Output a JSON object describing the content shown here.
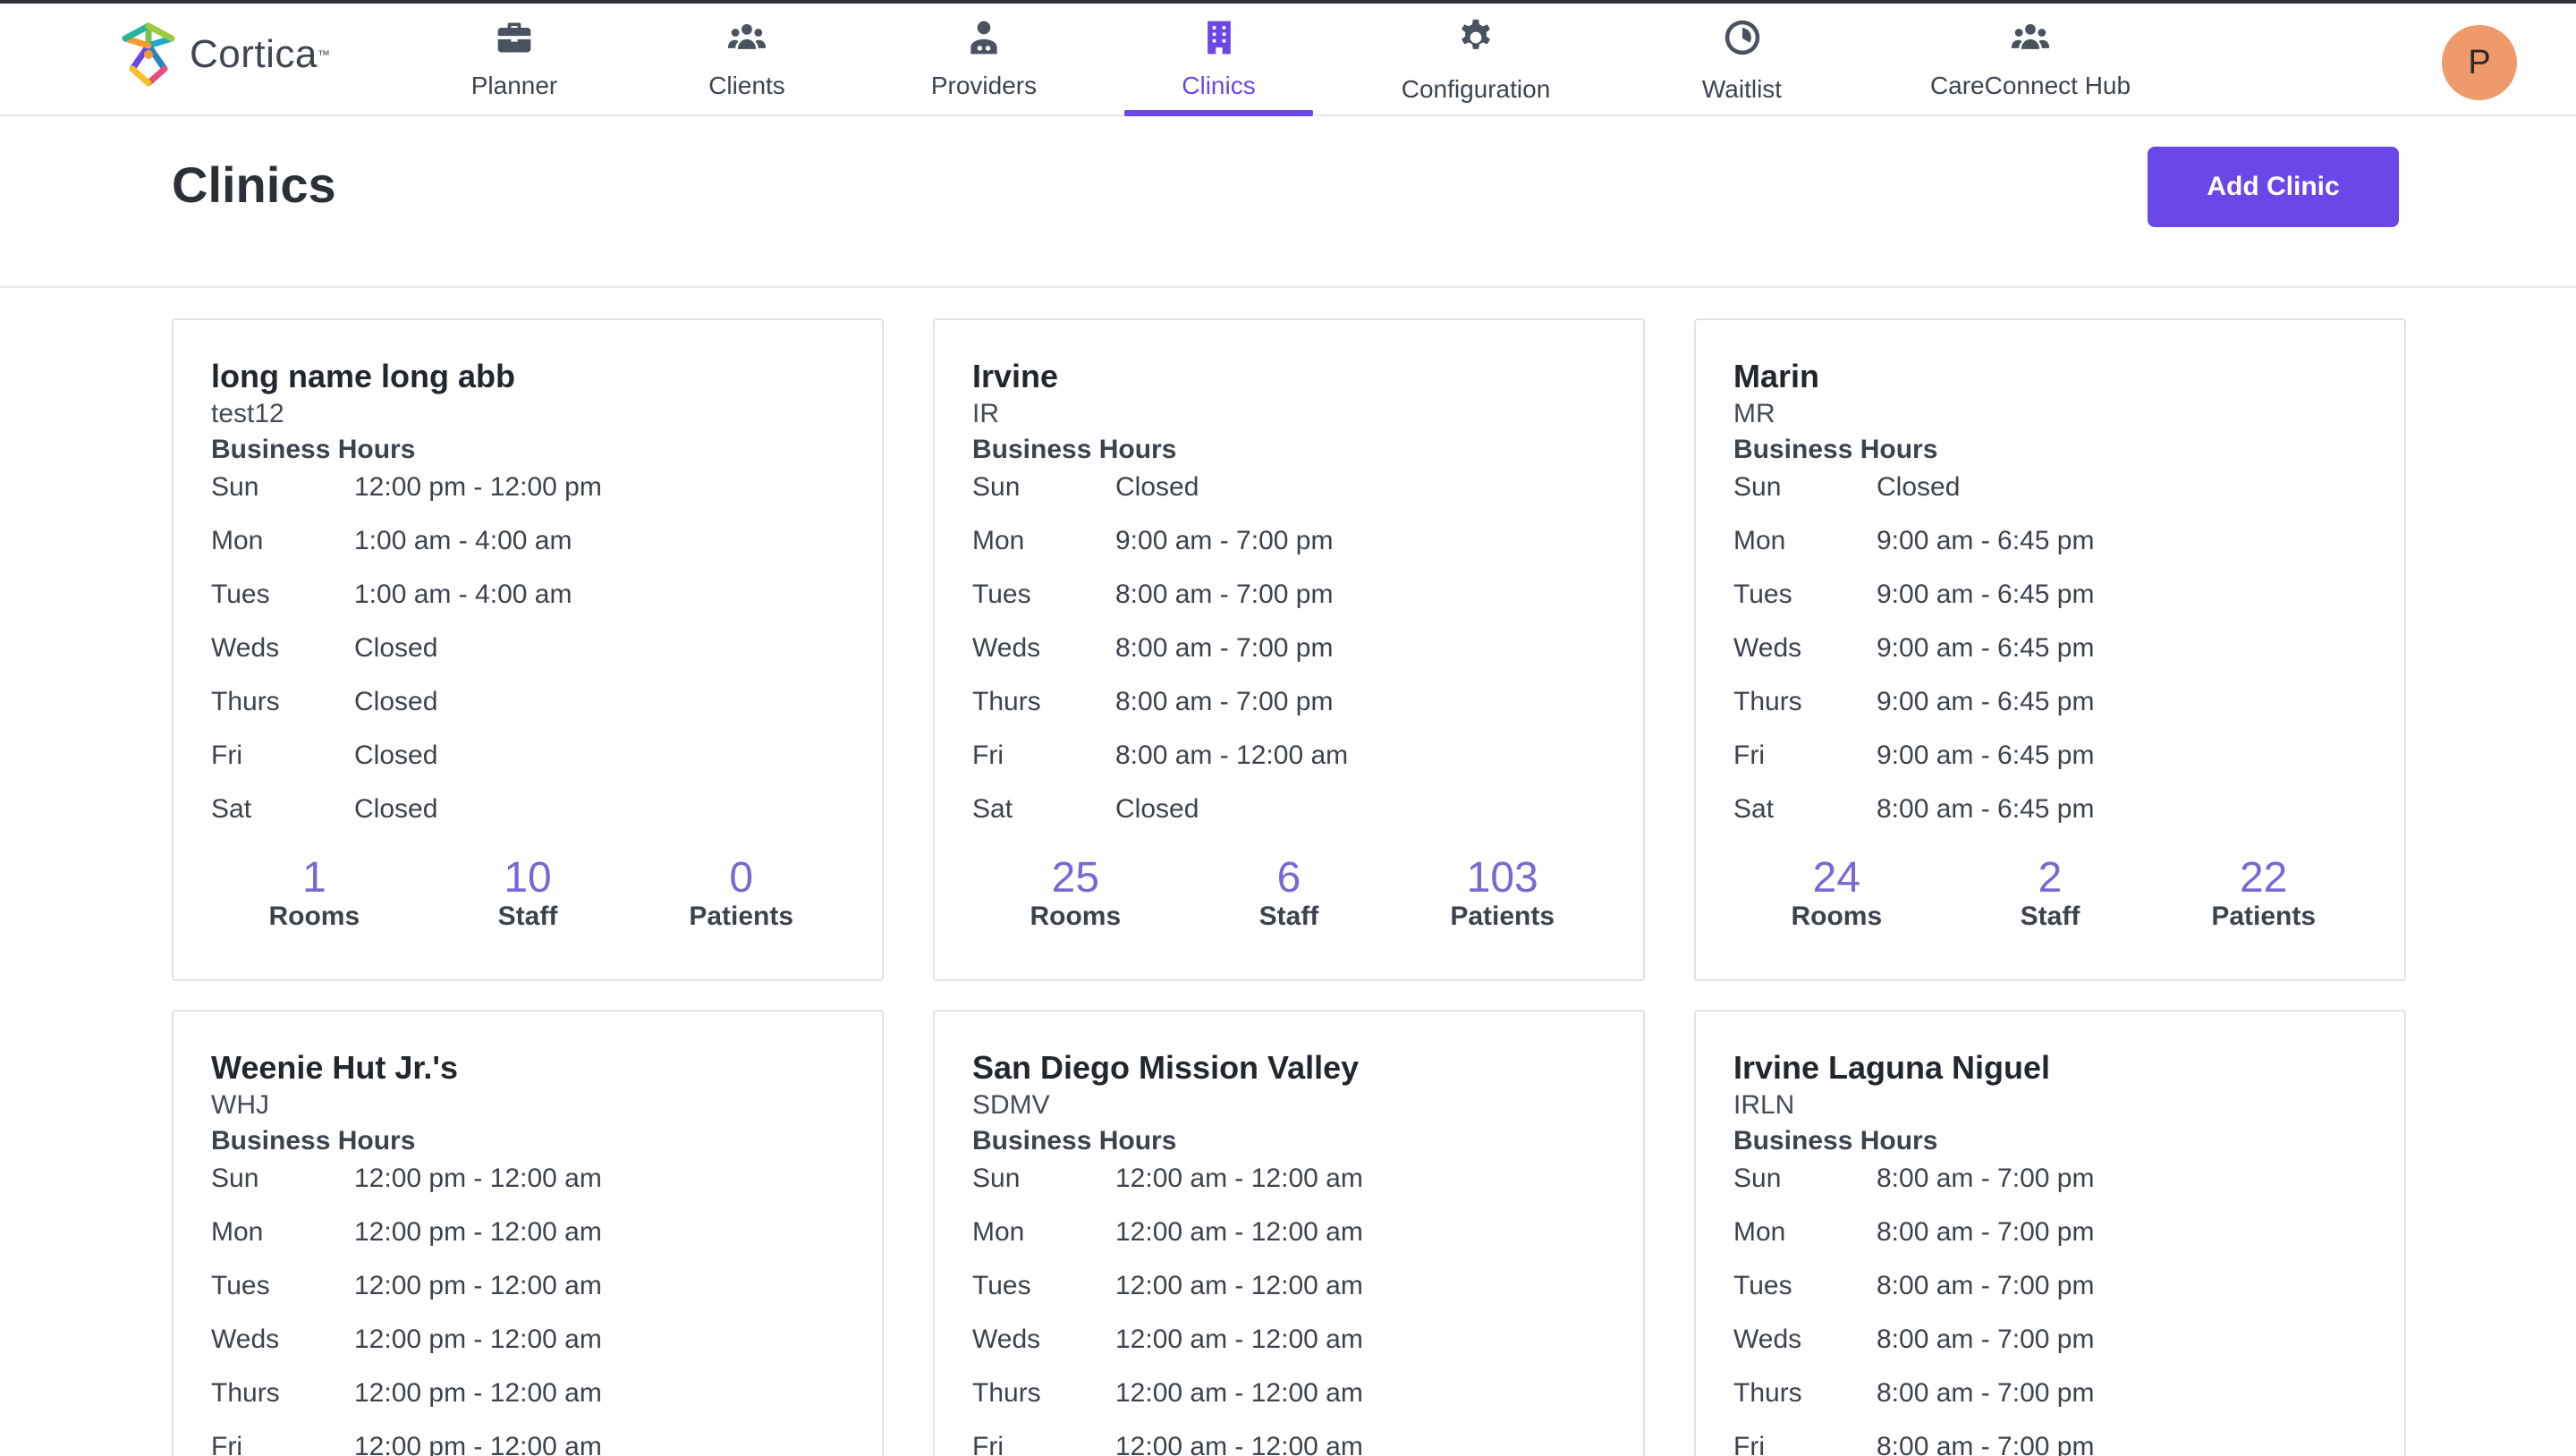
{
  "brand": {
    "name": "Cortica",
    "tm": "™"
  },
  "nav": [
    {
      "label": "Planner",
      "icon": "briefcase-icon"
    },
    {
      "label": "Clients",
      "icon": "users-icon"
    },
    {
      "label": "Providers",
      "icon": "provider-icon"
    },
    {
      "label": "Clinics",
      "icon": "building-icon",
      "active": true
    },
    {
      "label": "Configuration",
      "icon": "gear-icon"
    },
    {
      "label": "Waitlist",
      "icon": "clock-icon"
    },
    {
      "label": "CareConnect Hub",
      "icon": "users-icon"
    }
  ],
  "user": {
    "initial": "P"
  },
  "page": {
    "title": "Clinics",
    "add_label": "Add Clinic"
  },
  "labels": {
    "business_hours": "Business Hours",
    "rooms": "Rooms",
    "staff": "Staff",
    "patients": "Patients"
  },
  "clinics": [
    {
      "name": "long name long abb",
      "abbr": "test12",
      "hours": [
        [
          "Sun",
          "12:00 pm - 12:00 pm"
        ],
        [
          "Mon",
          "1:00 am - 4:00 am"
        ],
        [
          "Tues",
          "1:00 am - 4:00 am"
        ],
        [
          "Weds",
          "Closed"
        ],
        [
          "Thurs",
          "Closed"
        ],
        [
          "Fri",
          "Closed"
        ],
        [
          "Sat",
          "Closed"
        ]
      ],
      "rooms": "1",
      "staff": "10",
      "patients": "0"
    },
    {
      "name": "Irvine",
      "abbr": "IR",
      "hours": [
        [
          "Sun",
          "Closed"
        ],
        [
          "Mon",
          "9:00 am - 7:00 pm"
        ],
        [
          "Tues",
          "8:00 am - 7:00 pm"
        ],
        [
          "Weds",
          "8:00 am - 7:00 pm"
        ],
        [
          "Thurs",
          "8:00 am - 7:00 pm"
        ],
        [
          "Fri",
          "8:00 am - 12:00 am"
        ],
        [
          "Sat",
          "Closed"
        ]
      ],
      "rooms": "25",
      "staff": "6",
      "patients": "103"
    },
    {
      "name": "Marin",
      "abbr": "MR",
      "hours": [
        [
          "Sun",
          "Closed"
        ],
        [
          "Mon",
          "9:00 am - 6:45 pm"
        ],
        [
          "Tues",
          "9:00 am - 6:45 pm"
        ],
        [
          "Weds",
          "9:00 am - 6:45 pm"
        ],
        [
          "Thurs",
          "9:00 am - 6:45 pm"
        ],
        [
          "Fri",
          "9:00 am - 6:45 pm"
        ],
        [
          "Sat",
          "8:00 am - 6:45 pm"
        ]
      ],
      "rooms": "24",
      "staff": "2",
      "patients": "22"
    },
    {
      "name": "Weenie Hut Jr.'s",
      "abbr": "WHJ",
      "hours": [
        [
          "Sun",
          "12:00 pm - 12:00 am"
        ],
        [
          "Mon",
          "12:00 pm - 12:00 am"
        ],
        [
          "Tues",
          "12:00 pm - 12:00 am"
        ],
        [
          "Weds",
          "12:00 pm - 12:00 am"
        ],
        [
          "Thurs",
          "12:00 pm - 12:00 am"
        ],
        [
          "Fri",
          "12:00 pm - 12:00 am"
        ]
      ]
    },
    {
      "name": "San Diego Mission Valley",
      "abbr": "SDMV",
      "hours": [
        [
          "Sun",
          "12:00 am - 12:00 am"
        ],
        [
          "Mon",
          "12:00 am - 12:00 am"
        ],
        [
          "Tues",
          "12:00 am - 12:00 am"
        ],
        [
          "Weds",
          "12:00 am - 12:00 am"
        ],
        [
          "Thurs",
          "12:00 am - 12:00 am"
        ],
        [
          "Fri",
          "12:00 am - 12:00 am"
        ]
      ]
    },
    {
      "name": "Irvine Laguna Niguel",
      "abbr": "IRLN",
      "hours": [
        [
          "Sun",
          "8:00 am - 7:00 pm"
        ],
        [
          "Mon",
          "8:00 am - 7:00 pm"
        ],
        [
          "Tues",
          "8:00 am - 7:00 pm"
        ],
        [
          "Weds",
          "8:00 am - 7:00 pm"
        ],
        [
          "Thurs",
          "8:00 am - 7:00 pm"
        ],
        [
          "Fri",
          "8:00 am - 7:00 pm"
        ]
      ]
    }
  ]
}
